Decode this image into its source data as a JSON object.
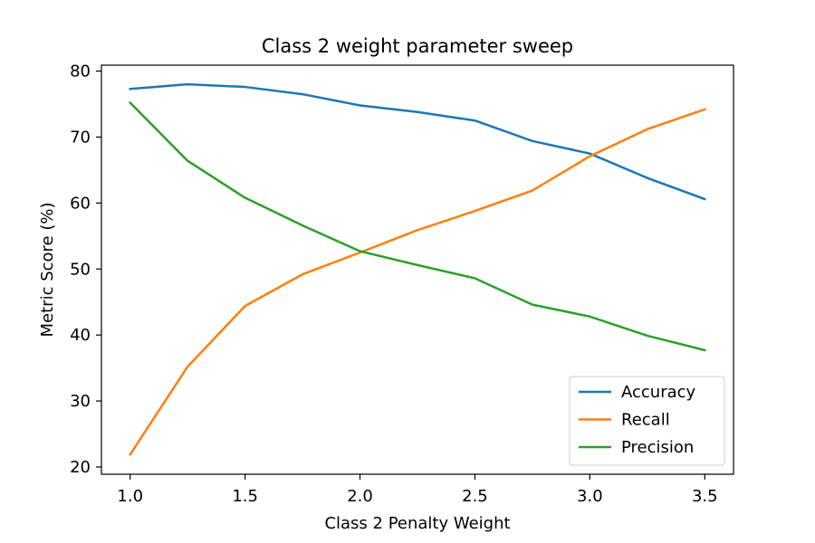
{
  "chart_data": {
    "type": "line",
    "title": "Class 2 weight parameter sweep",
    "xlabel": "Class 2 Penalty Weight",
    "ylabel": "Metric Score (%)",
    "x": [
      1.0,
      1.25,
      1.5,
      1.75,
      2.0,
      2.25,
      2.5,
      2.75,
      3.0,
      3.25,
      3.5
    ],
    "xlim": [
      0.875,
      3.625
    ],
    "ylim": [
      18.9,
      80.9
    ],
    "x_ticks": [
      1.0,
      1.5,
      2.0,
      2.5,
      3.0,
      3.5
    ],
    "x_tick_labels": [
      "1.0",
      "1.5",
      "2.0",
      "2.5",
      "3.0",
      "3.5"
    ],
    "y_ticks": [
      20,
      30,
      40,
      50,
      60,
      70,
      80
    ],
    "y_tick_labels": [
      "20",
      "30",
      "40",
      "50",
      "60",
      "70",
      "80"
    ],
    "grid": false,
    "legend_position": "bottom-right",
    "series": [
      {
        "name": "Accuracy",
        "color": "#1f77b4",
        "values": [
          77.3,
          78.0,
          77.6,
          76.5,
          74.8,
          73.8,
          72.5,
          69.4,
          67.5,
          63.8,
          60.6
        ]
      },
      {
        "name": "Recall",
        "color": "#ff7f0e",
        "values": [
          21.9,
          35.2,
          44.4,
          49.2,
          52.5,
          55.9,
          58.8,
          61.9,
          67.1,
          71.2,
          74.2
        ]
      },
      {
        "name": "Precision",
        "color": "#2ca02c",
        "values": [
          75.2,
          66.4,
          60.8,
          56.6,
          52.7,
          50.6,
          48.6,
          44.6,
          42.8,
          39.9,
          37.7
        ]
      }
    ]
  }
}
